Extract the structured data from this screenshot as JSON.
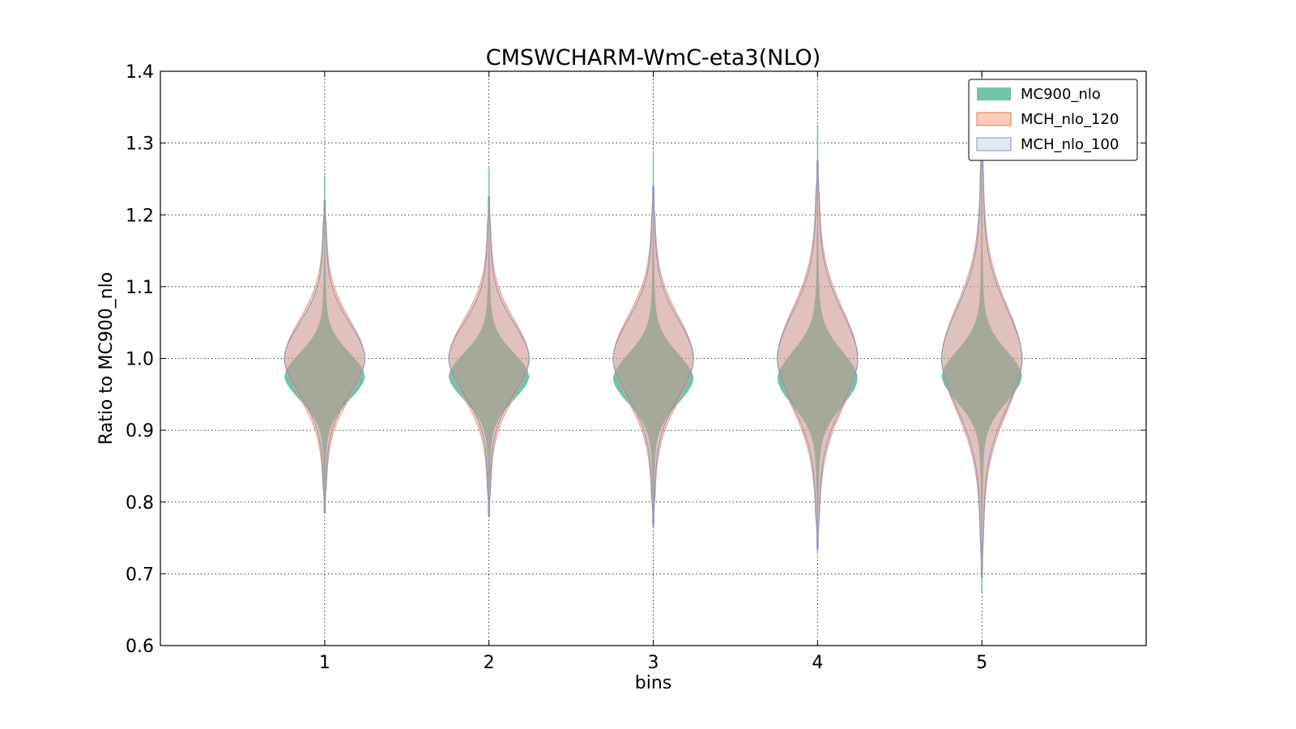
{
  "chart_data": {
    "type": "violin",
    "title": "CMSWCHARM-WmC-eta3(NLO)",
    "xlabel": "bins",
    "ylabel": "Ratio to MC900_nlo",
    "x_ticks": [
      "1",
      "2",
      "3",
      "4",
      "5"
    ],
    "y_ticks": [
      "0.6",
      "0.7",
      "0.8",
      "0.9",
      "1.0",
      "1.1",
      "1.2",
      "1.3",
      "1.4"
    ],
    "xlim": [
      0,
      6
    ],
    "ylim": [
      0.6,
      1.4
    ],
    "grid": true,
    "legend_position": "top-right",
    "series": [
      {
        "name": "MC900_nlo",
        "color": "#66c2a5",
        "bins": [
          {
            "x": 1,
            "min": 0.785,
            "max": 1.255,
            "peak": 0.975,
            "spread": 0.033
          },
          {
            "x": 2,
            "min": 0.78,
            "max": 1.265,
            "peak": 0.975,
            "spread": 0.033
          },
          {
            "x": 3,
            "min": 0.765,
            "max": 1.285,
            "peak": 0.972,
            "spread": 0.035
          },
          {
            "x": 4,
            "min": 0.728,
            "max": 1.325,
            "peak": 0.972,
            "spread": 0.038
          },
          {
            "x": 5,
            "min": 0.673,
            "max": 1.4,
            "peak": 0.975,
            "spread": 0.036
          }
        ]
      },
      {
        "name": "MCH_nlo_120",
        "color": "#fc8d62",
        "bins": [
          {
            "x": 1,
            "min": 0.79,
            "max": 1.22,
            "peak": 1.0,
            "spread": 0.055
          },
          {
            "x": 2,
            "min": 0.785,
            "max": 1.22,
            "peak": 1.0,
            "spread": 0.055
          },
          {
            "x": 3,
            "min": 0.77,
            "max": 1.235,
            "peak": 1.0,
            "spread": 0.06
          },
          {
            "x": 4,
            "min": 0.74,
            "max": 1.27,
            "peak": 1.0,
            "spread": 0.07
          },
          {
            "x": 5,
            "min": 0.7,
            "max": 1.31,
            "peak": 1.0,
            "spread": 0.075
          }
        ]
      },
      {
        "name": "MCH_nlo_100",
        "color": "#8da0cb",
        "bins": [
          {
            "x": 1,
            "min": 0.785,
            "max": 1.22,
            "peak": 1.0,
            "spread": 0.05
          },
          {
            "x": 2,
            "min": 0.78,
            "max": 1.225,
            "peak": 1.0,
            "spread": 0.05
          },
          {
            "x": 3,
            "min": 0.768,
            "max": 1.24,
            "peak": 1.0,
            "spread": 0.055
          },
          {
            "x": 4,
            "min": 0.735,
            "max": 1.275,
            "peak": 1.0,
            "spread": 0.065
          },
          {
            "x": 5,
            "min": 0.695,
            "max": 1.315,
            "peak": 1.0,
            "spread": 0.07
          }
        ]
      }
    ]
  }
}
